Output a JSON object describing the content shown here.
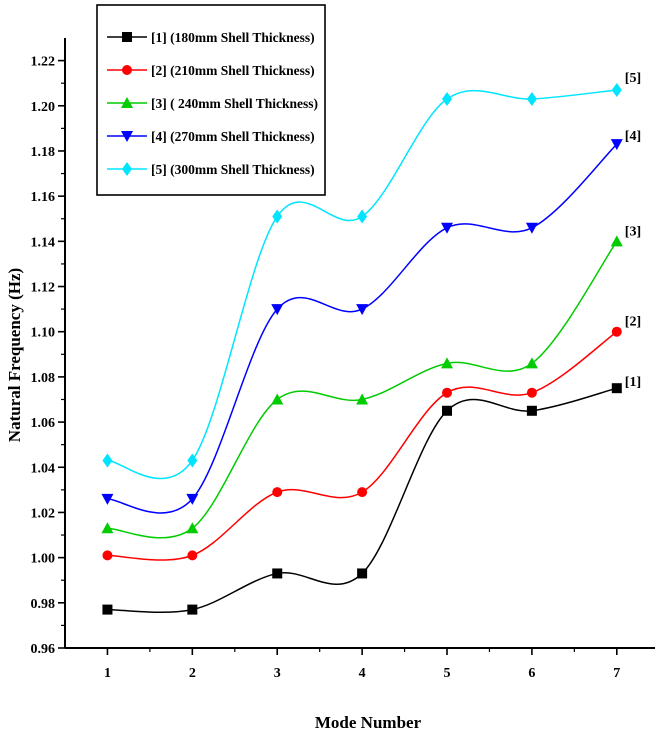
{
  "chart_data": {
    "type": "line",
    "title": "",
    "xlabel": "Mode Number",
    "ylabel": "Natural Frequency (Hz)",
    "x": [
      1,
      2,
      3,
      4,
      5,
      6,
      7
    ],
    "xticks": [
      "1",
      "2",
      "3",
      "4",
      "5",
      "6",
      "7"
    ],
    "xlim": [
      0.5,
      7.45
    ],
    "ylim": [
      0.96,
      1.23
    ],
    "yticks": [
      "0.96",
      "0.98",
      "1.00",
      "1.02",
      "1.04",
      "1.06",
      "1.08",
      "1.10",
      "1.12",
      "1.14",
      "1.16",
      "1.18",
      "1.20",
      "1.22"
    ],
    "grid": false,
    "legend_position": "top-left",
    "series": [
      {
        "name": "[1] (180mm Shell Thickness)",
        "end_label": "[1]",
        "color": "#000000",
        "marker": "square",
        "values": [
          0.977,
          0.977,
          0.993,
          0.993,
          1.065,
          1.065,
          1.075
        ]
      },
      {
        "name": "[2] (210mm Shell Thickness)",
        "end_label": "[2]",
        "color": "#ff0000",
        "marker": "circle",
        "values": [
          1.001,
          1.001,
          1.029,
          1.029,
          1.073,
          1.073,
          1.1
        ]
      },
      {
        "name": "[3] ( 240mm Shell Thickness)",
        "end_label": "[3]",
        "color": "#00cc00",
        "marker": "triangle-up",
        "values": [
          1.013,
          1.013,
          1.07,
          1.07,
          1.086,
          1.086,
          1.14
        ]
      },
      {
        "name": "[4] (270mm Shell Thickness)",
        "end_label": "[4]",
        "color": "#0000ff",
        "marker": "triangle-down",
        "values": [
          1.026,
          1.026,
          1.11,
          1.11,
          1.146,
          1.146,
          1.183
        ]
      },
      {
        "name": "[5] (300mm Shell Thickness)",
        "end_label": "[5]",
        "color": "#00e5ff",
        "marker": "diamond",
        "values": [
          1.043,
          1.043,
          1.151,
          1.151,
          1.203,
          1.203,
          1.207
        ]
      }
    ]
  }
}
